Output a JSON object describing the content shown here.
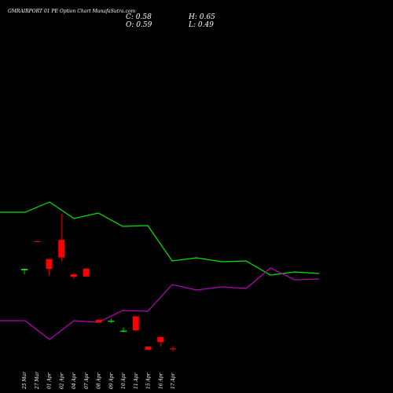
{
  "header": {
    "title": "GMRAIRPORT 01 PE Option Chart MunafaSutra.com",
    "close": "C: 0.58",
    "high": "H: 0.65",
    "open": "O: 0.59",
    "low": "L: 0.49"
  },
  "colors": {
    "background": "#000000",
    "up": "#00ff00",
    "down": "#ff0000",
    "line_green": "#00e600",
    "line_magenta": "#b800b8"
  },
  "chart_data": [
    {
      "type": "line",
      "series": [
        {
          "color": "#00e600",
          "values": [
            230,
            230,
            243,
            222,
            229,
            212,
            213,
            168,
            172,
            167,
            168,
            150,
            154,
            152
          ]
        },
        {
          "color": "#b800b8",
          "values": [
            92,
            92,
            68,
            92,
            90,
            105,
            104,
            138,
            131,
            135,
            133,
            159,
            144,
            145
          ]
        }
      ],
      "ylim": [
        0,
        500
      ]
    },
    {
      "type": "candlestick",
      "categories": [
        "25 Mar",
        "27 Mar",
        "01 Apr",
        "02 Apr",
        "04 Apr",
        "07 Apr",
        "08 Apr",
        "09 Apr",
        "10 Apr",
        "11 Apr",
        "15 Apr",
        "16 Apr",
        "17 Apr"
      ],
      "candles": [
        {
          "open": 3.05,
          "high": 3.09,
          "low": 2.92,
          "close": 3.09
        },
        {
          "open": 3.96,
          "high": 3.96,
          "low": 3.93,
          "close": 3.95
        },
        {
          "open": 3.4,
          "high": 3.4,
          "low": 2.88,
          "close": 3.09
        },
        {
          "open": 4.0,
          "high": 4.82,
          "low": 3.32,
          "close": 3.45
        },
        {
          "open": 2.92,
          "high": 2.97,
          "low": 2.78,
          "close": 2.84
        },
        {
          "open": 3.1,
          "high": 3.12,
          "low": 2.85,
          "close": 2.85
        },
        {
          "open": 1.49,
          "high": 1.5,
          "low": 1.4,
          "close": 1.4
        },
        {
          "open": 1.43,
          "high": 1.53,
          "low": 1.39,
          "close": 1.46
        },
        {
          "open": 1.12,
          "high": 1.25,
          "low": 1.1,
          "close": 1.15
        },
        {
          "open": 1.6,
          "high": 1.6,
          "low": 1.13,
          "close": 1.16
        },
        {
          "open": 0.65,
          "high": 0.65,
          "low": 0.55,
          "close": 0.55
        },
        {
          "open": 0.95,
          "high": 0.95,
          "low": 0.65,
          "close": 0.79
        },
        {
          "open": 0.59,
          "high": 0.65,
          "low": 0.49,
          "close": 0.58
        }
      ]
    }
  ]
}
